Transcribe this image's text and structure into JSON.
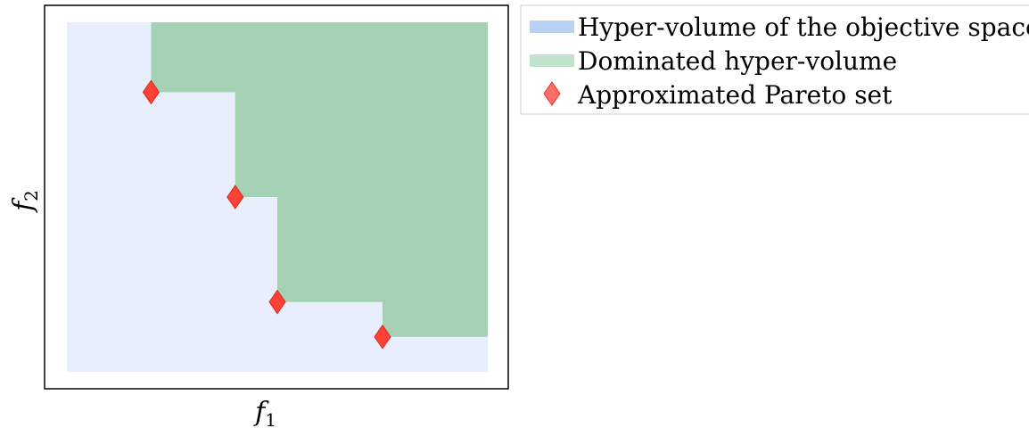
{
  "chart_data": {
    "type": "area",
    "xlabel": "f",
    "xlabel_sub": "1",
    "ylabel": "f",
    "ylabel_sub": "2",
    "xlim": [
      0,
      100
    ],
    "ylim": [
      0,
      100
    ],
    "grid": false,
    "legend_position": "top-right-outside",
    "reference_box": {
      "x": [
        0,
        100
      ],
      "y": [
        0,
        100
      ]
    },
    "pareto_points": [
      {
        "x": 20,
        "y": 80
      },
      {
        "x": 40,
        "y": 50
      },
      {
        "x": 50,
        "y": 20
      },
      {
        "x": 75,
        "y": 10
      }
    ],
    "series": [
      {
        "name": "Hyper-volume of the objective space",
        "color": "#e8eefb",
        "legend_color": "#b9d2f2"
      },
      {
        "name": "Dominated hyper-volume",
        "color": "#a4d0b4",
        "legend_color": "#bfe3cd"
      },
      {
        "name": "Approximated Pareto set",
        "color": "#ff4136",
        "marker": "diamond"
      }
    ]
  }
}
